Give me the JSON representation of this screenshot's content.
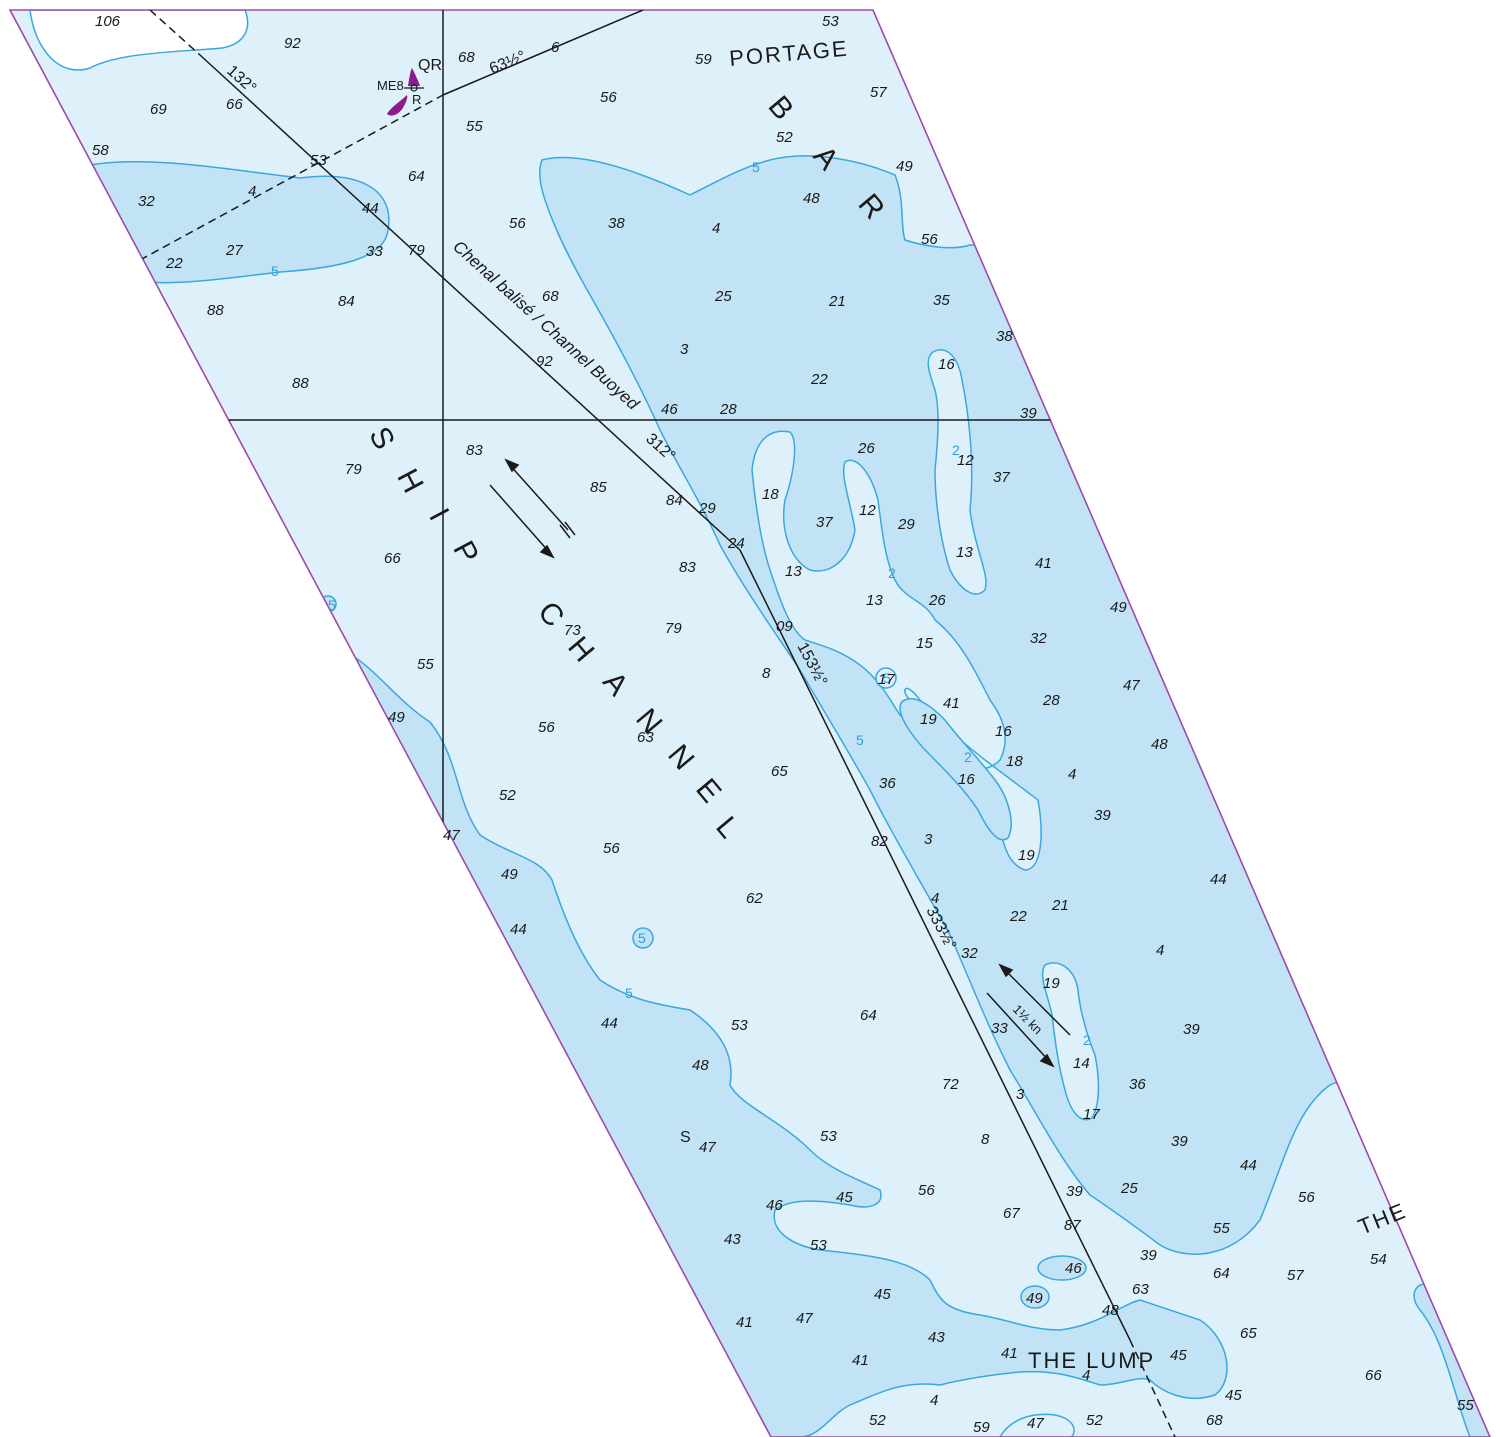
{
  "colors": {
    "shallow": "#c2e3f6",
    "deep": "#def0fa",
    "land": "#ffffff",
    "contour": "#3aa8dc",
    "border": "#a04aa8",
    "lines": "#1a1a1a",
    "buoy": "#8b1a8b"
  },
  "labels": {
    "portage": "PORTAGE",
    "bar_b": "B",
    "bar_a": "A",
    "bar_r": "R",
    "ship_s": "S",
    "ship_h": "H",
    "ship_i": "I",
    "ship_p": "P",
    "channel_c": "C",
    "channel_h": "H",
    "channel_a": "A",
    "channel_n1": "N",
    "channel_n2": "N",
    "channel_e": "E",
    "channel_l": "L",
    "the_lump": "THE LUMP",
    "the": "THE",
    "chenal": "Chenal balisé / Channel Buoyed",
    "bearing_132": "132°",
    "bearing_312": "312°",
    "bearing_63": "63½°",
    "bearing_153": "153½°",
    "bearing_333": "333½°",
    "buoy_name": "ME8",
    "buoy_light": "QR",
    "buoy_color": "R",
    "current": "1½ kn",
    "seabed": "S"
  },
  "contour_labels": [
    "5",
    "5",
    "5",
    "5",
    "5",
    "5",
    "5",
    "2",
    "2",
    "2",
    "2"
  ],
  "soundings": [
    {
      "text": "106"
    },
    {
      "text": "92"
    },
    {
      "text": "68"
    },
    {
      "text": "6"
    },
    {
      "text": "53"
    },
    {
      "text": "59"
    },
    {
      "text": "57"
    },
    {
      "text": "69"
    },
    {
      "text": "66"
    },
    {
      "text": "56"
    },
    {
      "text": "55"
    },
    {
      "text": "52"
    },
    {
      "text": "58"
    },
    {
      "text": "53"
    },
    {
      "text": "64"
    },
    {
      "text": "49"
    },
    {
      "text": "32"
    },
    {
      "text": "4"
    },
    {
      "text": "44"
    },
    {
      "text": "48"
    },
    {
      "text": "22"
    },
    {
      "text": "27"
    },
    {
      "text": "33"
    },
    {
      "text": "79"
    },
    {
      "text": "56"
    },
    {
      "text": "38"
    },
    {
      "text": "4"
    },
    {
      "text": "56"
    },
    {
      "text": "88"
    },
    {
      "text": "84"
    },
    {
      "text": "68"
    },
    {
      "text": "25"
    },
    {
      "text": "21"
    },
    {
      "text": "35"
    },
    {
      "text": "38"
    },
    {
      "text": "3"
    },
    {
      "text": "92"
    },
    {
      "text": "16"
    },
    {
      "text": "88"
    },
    {
      "text": "22"
    },
    {
      "text": "46"
    },
    {
      "text": "28"
    },
    {
      "text": "39"
    },
    {
      "text": "83"
    },
    {
      "text": "26"
    },
    {
      "text": "12"
    },
    {
      "text": "79"
    },
    {
      "text": "37"
    },
    {
      "text": "85"
    },
    {
      "text": "84"
    },
    {
      "text": "29"
    },
    {
      "text": "18"
    },
    {
      "text": "12"
    },
    {
      "text": "37"
    },
    {
      "text": "29"
    },
    {
      "text": "24"
    },
    {
      "text": "13"
    },
    {
      "text": "66"
    },
    {
      "text": "83"
    },
    {
      "text": "13"
    },
    {
      "text": "41"
    },
    {
      "text": "13"
    },
    {
      "text": "26"
    },
    {
      "text": "49"
    },
    {
      "text": "73"
    },
    {
      "text": "79"
    },
    {
      "text": "09"
    },
    {
      "text": "15"
    },
    {
      "text": "32"
    },
    {
      "text": "55"
    },
    {
      "text": "8"
    },
    {
      "text": "17"
    },
    {
      "text": "47"
    },
    {
      "text": "41"
    },
    {
      "text": "28"
    },
    {
      "text": "49"
    },
    {
      "text": "56"
    },
    {
      "text": "63"
    },
    {
      "text": "19"
    },
    {
      "text": "16"
    },
    {
      "text": "48"
    },
    {
      "text": "65"
    },
    {
      "text": "18"
    },
    {
      "text": "4"
    },
    {
      "text": "16"
    },
    {
      "text": "52"
    },
    {
      "text": "36"
    },
    {
      "text": "39"
    },
    {
      "text": "47"
    },
    {
      "text": "56"
    },
    {
      "text": "82"
    },
    {
      "text": "3"
    },
    {
      "text": "19"
    },
    {
      "text": "49"
    },
    {
      "text": "44"
    },
    {
      "text": "62"
    },
    {
      "text": "4"
    },
    {
      "text": "21"
    },
    {
      "text": "22"
    },
    {
      "text": "44"
    },
    {
      "text": "32"
    },
    {
      "text": "4"
    },
    {
      "text": "19"
    },
    {
      "text": "44"
    },
    {
      "text": "53"
    },
    {
      "text": "64"
    },
    {
      "text": "33"
    },
    {
      "text": "39"
    },
    {
      "text": "48"
    },
    {
      "text": "14"
    },
    {
      "text": "72"
    },
    {
      "text": "36"
    },
    {
      "text": "3"
    },
    {
      "text": "17"
    },
    {
      "text": "47"
    },
    {
      "text": "53"
    },
    {
      "text": "8"
    },
    {
      "text": "39"
    },
    {
      "text": "44"
    },
    {
      "text": "45"
    },
    {
      "text": "56"
    },
    {
      "text": "39"
    },
    {
      "text": "25"
    },
    {
      "text": "56"
    },
    {
      "text": "46"
    },
    {
      "text": "67"
    },
    {
      "text": "87"
    },
    {
      "text": "55"
    },
    {
      "text": "43"
    },
    {
      "text": "53"
    },
    {
      "text": "39"
    },
    {
      "text": "46"
    },
    {
      "text": "64"
    },
    {
      "text": "57"
    },
    {
      "text": "54"
    },
    {
      "text": "45"
    },
    {
      "text": "63"
    },
    {
      "text": "49"
    },
    {
      "text": "48"
    },
    {
      "text": "41"
    },
    {
      "text": "47"
    },
    {
      "text": "43"
    },
    {
      "text": "65"
    },
    {
      "text": "41"
    },
    {
      "text": "41"
    },
    {
      "text": "4"
    },
    {
      "text": "45"
    },
    {
      "text": "66"
    },
    {
      "text": "52"
    },
    {
      "text": "4"
    },
    {
      "text": "59"
    },
    {
      "text": "47"
    },
    {
      "text": "52"
    },
    {
      "text": "68"
    },
    {
      "text": "45"
    },
    {
      "text": "55"
    }
  ]
}
